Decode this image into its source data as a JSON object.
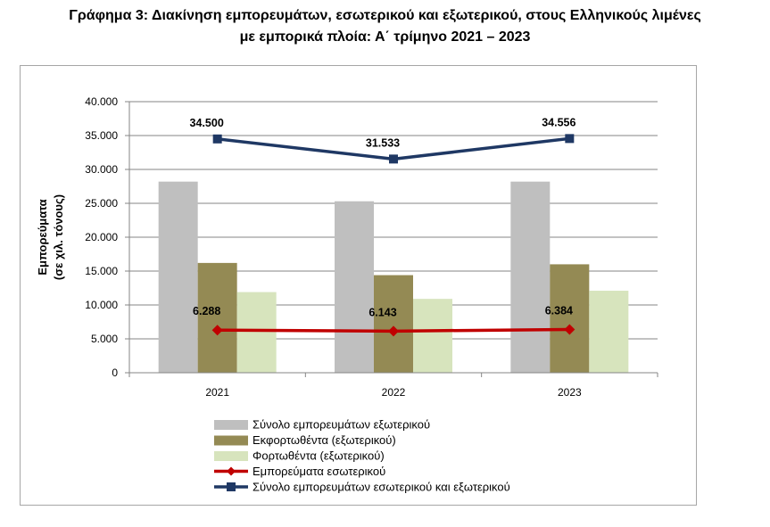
{
  "title_line1": "Γράφημα 3: Διακίνηση εμπορευμάτων, εσωτερικού και εξωτερικού, στους Ελληνικούς λιμένες",
  "title_line2": "με εμπορικά πλοία: Α΄ τρίμηνο 2021 – 2023",
  "chart_data": {
    "type": "bar",
    "categories": [
      "2021",
      "2022",
      "2023"
    ],
    "ylabel_line1": "Εμπορεύματα",
    "ylabel_line2": "(σε χιλ. τόνους)",
    "ylim": [
      0,
      40000
    ],
    "yticks": [
      0,
      5000,
      10000,
      15000,
      20000,
      25000,
      30000,
      35000,
      40000
    ],
    "ytick_labels": [
      "0",
      "5.000",
      "10.000",
      "15.000",
      "20.000",
      "25.000",
      "30.000",
      "35.000",
      "40.000"
    ],
    "grid": true,
    "legend_position": "bottom",
    "series": [
      {
        "name": "Σύνολο εμπορευμάτων εξωτερικού",
        "kind": "bar",
        "color": "#bfbfbf",
        "values": [
          28200,
          25300,
          28200
        ]
      },
      {
        "name": "Εκφορτωθέντα (εξωτερικού)",
        "kind": "bar",
        "color": "#948a54",
        "values": [
          16200,
          14400,
          16000
        ]
      },
      {
        "name": "Φορτωθέντα (εξωτερικού)",
        "kind": "bar",
        "color": "#d7e4bd",
        "values": [
          11900,
          10900,
          12100
        ]
      },
      {
        "name": "Εμπορεύματα εσωτερικού",
        "kind": "line",
        "marker": "diamond",
        "color": "#c00000",
        "values": [
          6288,
          6143,
          6384
        ],
        "data_labels": [
          "6.288",
          "6.143",
          "6.384"
        ]
      },
      {
        "name": "Σύνολο εμπορευμάτων εσωτερικού και εξωτερικού",
        "kind": "line",
        "marker": "square",
        "color": "#1f3864",
        "values": [
          34500,
          31533,
          34556
        ],
        "data_labels": [
          "34.500",
          "31.533",
          "34.556"
        ]
      }
    ]
  }
}
